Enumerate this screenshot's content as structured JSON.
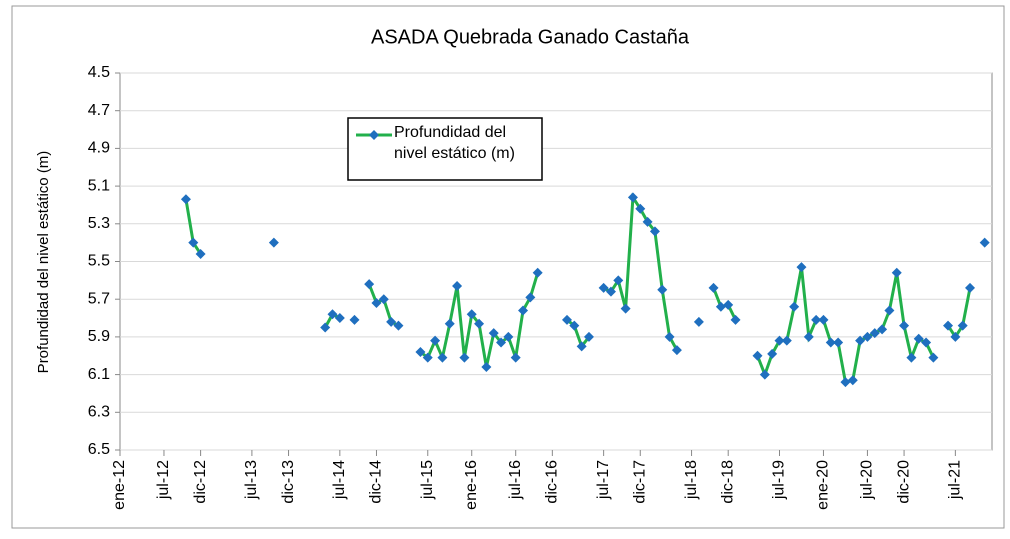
{
  "chart_data": {
    "type": "line",
    "title": "ASADA Quebrada Ganado Castaña",
    "y_label": "Profundidad del nivel estático (m)",
    "ylim": [
      4.5,
      6.5
    ],
    "yticks": [
      4.5,
      4.7,
      4.9,
      5.1,
      5.3,
      5.5,
      5.7,
      5.9,
      6.1,
      6.3,
      6.5
    ],
    "y_reversed": true,
    "grid": true,
    "xlim": [
      "2012-01",
      "2021-12"
    ],
    "xticks": [
      {
        "value": "2012-01",
        "label": "ene-12"
      },
      {
        "value": "2012-07",
        "label": "jul-12"
      },
      {
        "value": "2012-12",
        "label": "dic-12"
      },
      {
        "value": "2013-07",
        "label": "jul-13"
      },
      {
        "value": "2013-12",
        "label": "dic-13"
      },
      {
        "value": "2014-07",
        "label": "jul-14"
      },
      {
        "value": "2014-12",
        "label": "dic-14"
      },
      {
        "value": "2015-07",
        "label": "jul-15"
      },
      {
        "value": "2016-01",
        "label": "ene-16"
      },
      {
        "value": "2016-07",
        "label": "jul-16"
      },
      {
        "value": "2016-12",
        "label": "dic-16"
      },
      {
        "value": "2017-07",
        "label": "jul-17"
      },
      {
        "value": "2017-12",
        "label": "dic-17"
      },
      {
        "value": "2018-07",
        "label": "jul-18"
      },
      {
        "value": "2018-12",
        "label": "dic-18"
      },
      {
        "value": "2019-07",
        "label": "jul-19"
      },
      {
        "value": "2020-01",
        "label": "ene-20"
      },
      {
        "value": "2020-07",
        "label": "jul-20"
      },
      {
        "value": "2020-12",
        "label": "dic-20"
      },
      {
        "value": "2021-07",
        "label": "jul-21"
      }
    ],
    "legend_position": "upper center",
    "x": [
      "2012-10",
      "2012-11",
      "2012-12",
      "2013-01",
      "2013-02",
      "2013-03",
      "2013-04",
      "2013-05",
      "2013-06",
      "2013-07",
      "2013-08",
      "2013-09",
      "2013-10",
      "2013-11",
      "2013-12",
      "2014-01",
      "2014-02",
      "2014-03",
      "2014-04",
      "2014-05",
      "2014-06",
      "2014-07",
      "2014-08",
      "2014-09",
      "2014-10",
      "2014-11",
      "2014-12",
      "2015-01",
      "2015-02",
      "2015-03",
      "2015-04",
      "2015-05",
      "2015-06",
      "2015-07",
      "2015-08",
      "2015-09",
      "2015-10",
      "2015-11",
      "2015-12",
      "2016-01",
      "2016-02",
      "2016-03",
      "2016-04",
      "2016-05",
      "2016-06",
      "2016-07",
      "2016-08",
      "2016-09",
      "2016-10",
      "2016-11",
      "2016-12",
      "2017-01",
      "2017-02",
      "2017-03",
      "2017-04",
      "2017-05",
      "2017-06",
      "2017-07",
      "2017-08",
      "2017-09",
      "2017-10",
      "2017-11",
      "2017-12",
      "2018-01",
      "2018-02",
      "2018-03",
      "2018-04",
      "2018-05",
      "2018-06",
      "2018-07",
      "2018-08",
      "2018-09",
      "2018-10",
      "2018-11",
      "2018-12",
      "2019-01",
      "2019-02",
      "2019-03",
      "2019-04",
      "2019-05",
      "2019-06",
      "2019-07",
      "2019-08",
      "2019-09",
      "2019-10",
      "2019-11",
      "2019-12",
      "2020-01",
      "2020-02",
      "2020-03",
      "2020-04",
      "2020-05",
      "2020-06",
      "2020-07",
      "2020-08",
      "2020-09",
      "2020-10",
      "2020-11",
      "2020-12",
      "2021-01",
      "2021-02",
      "2021-03",
      "2021-04",
      "2021-05",
      "2021-06",
      "2021-07",
      "2021-08",
      "2021-09",
      "2021-10",
      "2021-11"
    ],
    "series": [
      {
        "name": "Profundidad del nivel estático (m)",
        "color": "#22b04b",
        "marker_color": "#1f6fbf",
        "values": [
          5.17,
          5.4,
          5.46,
          null,
          null,
          null,
          null,
          null,
          null,
          null,
          null,
          null,
          5.4,
          null,
          null,
          null,
          null,
          null,
          null,
          5.85,
          5.78,
          5.8,
          null,
          5.81,
          null,
          5.62,
          5.72,
          5.7,
          5.82,
          5.84,
          null,
          null,
          5.98,
          6.01,
          5.92,
          6.01,
          5.83,
          5.63,
          6.01,
          5.78,
          5.83,
          6.06,
          5.88,
          5.93,
          5.9,
          6.01,
          5.76,
          5.69,
          5.56,
          null,
          null,
          null,
          5.81,
          5.84,
          5.95,
          5.9,
          null,
          5.64,
          5.66,
          5.6,
          5.75,
          5.16,
          5.22,
          5.29,
          5.34,
          5.65,
          5.9,
          5.97,
          null,
          null,
          5.82,
          null,
          5.64,
          5.74,
          5.73,
          5.81,
          null,
          null,
          6.0,
          6.1,
          5.99,
          5.92,
          5.92,
          5.74,
          5.53,
          5.9,
          5.81,
          5.81,
          5.93,
          5.93,
          6.14,
          6.13,
          5.92,
          5.9,
          5.88,
          5.86,
          5.76,
          5.56,
          5.84,
          6.01,
          5.91,
          5.93,
          6.01,
          null,
          5.84,
          5.9,
          5.84,
          5.64,
          null,
          5.4
        ]
      }
    ]
  }
}
